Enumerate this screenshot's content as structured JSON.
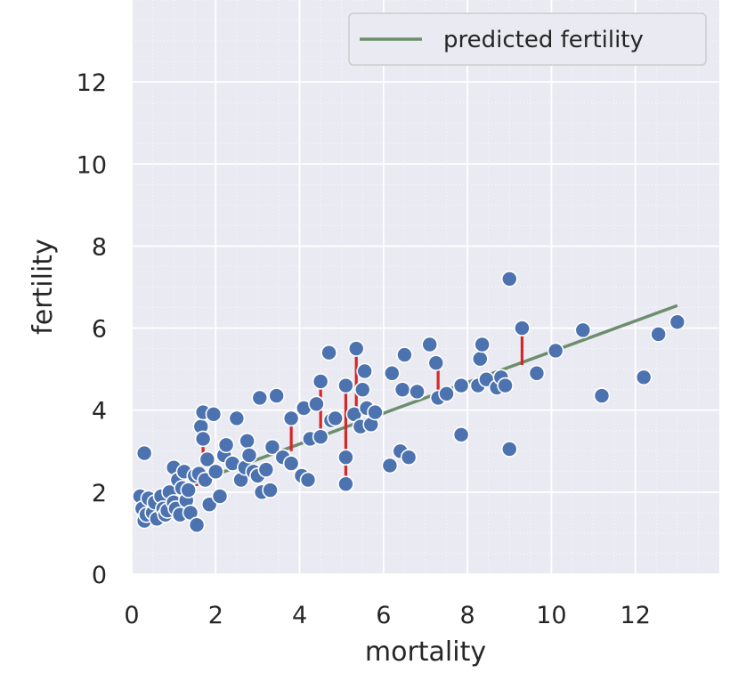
{
  "chart_data": {
    "type": "scatter",
    "title": "",
    "xlabel": "mortality",
    "ylabel": "fertility",
    "xlim": [
      0,
      14
    ],
    "ylim": [
      0,
      14
    ],
    "xticks": [
      0,
      2,
      4,
      6,
      8,
      10,
      12
    ],
    "yticks": [
      0,
      2,
      4,
      6,
      8,
      10,
      12
    ],
    "grid": true,
    "legend_placement": "top-right",
    "colors": {
      "background": "#eaeaf2",
      "grid": "#ffffff",
      "points": "#4c72b0",
      "point_edge": "#ffffff",
      "line": "#6d8e6d",
      "residuals": "#d62728"
    },
    "regression_line": {
      "name": "predicted fertility",
      "x": [
        0.2,
        13.0
      ],
      "y": [
        1.75,
        6.55
      ]
    },
    "residuals": [
      {
        "x": 0.3,
        "y_from": 1.78,
        "y_to": 1.45
      },
      {
        "x": 0.4,
        "y_from": 1.8,
        "y_to": 1.35
      },
      {
        "x": 0.9,
        "y_from": 1.95,
        "y_to": 1.55
      },
      {
        "x": 1.55,
        "y_from": 2.15,
        "y_to": 2.45
      },
      {
        "x": 1.7,
        "y_from": 2.25,
        "y_to": 3.95
      },
      {
        "x": 3.8,
        "y_from": 3.0,
        "y_to": 3.8
      },
      {
        "x": 4.5,
        "y_from": 3.3,
        "y_to": 4.7
      },
      {
        "x": 5.1,
        "y_from": 3.5,
        "y_to": 2.2
      },
      {
        "x": 5.1,
        "y_from": 3.5,
        "y_to": 4.6
      },
      {
        "x": 5.35,
        "y_from": 3.6,
        "y_to": 5.5
      },
      {
        "x": 7.3,
        "y_from": 4.4,
        "y_to": 5.15
      },
      {
        "x": 8.7,
        "y_from": 4.95,
        "y_to": 4.55
      },
      {
        "x": 9.3,
        "y_from": 5.1,
        "y_to": 6.0
      }
    ],
    "points": [
      {
        "x": 0.3,
        "y": 2.95
      },
      {
        "x": 0.2,
        "y": 1.9
      },
      {
        "x": 0.25,
        "y": 1.6
      },
      {
        "x": 0.3,
        "y": 1.3
      },
      {
        "x": 0.35,
        "y": 1.45
      },
      {
        "x": 0.4,
        "y": 1.85
      },
      {
        "x": 0.5,
        "y": 1.5
      },
      {
        "x": 0.55,
        "y": 1.75
      },
      {
        "x": 0.6,
        "y": 1.35
      },
      {
        "x": 0.7,
        "y": 1.9
      },
      {
        "x": 0.75,
        "y": 1.6
      },
      {
        "x": 0.8,
        "y": 1.45
      },
      {
        "x": 0.85,
        "y": 1.55
      },
      {
        "x": 0.9,
        "y": 2.0
      },
      {
        "x": 1.0,
        "y": 2.6
      },
      {
        "x": 1.0,
        "y": 1.75
      },
      {
        "x": 1.05,
        "y": 1.6
      },
      {
        "x": 1.1,
        "y": 2.3
      },
      {
        "x": 1.15,
        "y": 1.45
      },
      {
        "x": 1.2,
        "y": 2.1
      },
      {
        "x": 1.25,
        "y": 2.5
      },
      {
        "x": 1.3,
        "y": 1.8
      },
      {
        "x": 1.35,
        "y": 2.05
      },
      {
        "x": 1.4,
        "y": 1.5
      },
      {
        "x": 1.5,
        "y": 2.4
      },
      {
        "x": 1.55,
        "y": 1.2
      },
      {
        "x": 1.6,
        "y": 2.45
      },
      {
        "x": 1.65,
        "y": 3.6
      },
      {
        "x": 1.7,
        "y": 3.3
      },
      {
        "x": 1.7,
        "y": 3.95
      },
      {
        "x": 1.75,
        "y": 2.3
      },
      {
        "x": 1.8,
        "y": 2.8
      },
      {
        "x": 1.85,
        "y": 1.7
      },
      {
        "x": 1.95,
        "y": 3.9
      },
      {
        "x": 2.0,
        "y": 2.5
      },
      {
        "x": 2.1,
        "y": 1.9
      },
      {
        "x": 2.2,
        "y": 2.9
      },
      {
        "x": 2.25,
        "y": 3.15
      },
      {
        "x": 2.4,
        "y": 2.7
      },
      {
        "x": 2.5,
        "y": 3.8
      },
      {
        "x": 2.6,
        "y": 2.3
      },
      {
        "x": 2.7,
        "y": 2.6
      },
      {
        "x": 2.75,
        "y": 3.25
      },
      {
        "x": 2.8,
        "y": 2.9
      },
      {
        "x": 2.9,
        "y": 2.5
      },
      {
        "x": 3.0,
        "y": 2.4
      },
      {
        "x": 3.05,
        "y": 4.3
      },
      {
        "x": 3.1,
        "y": 2.0
      },
      {
        "x": 3.2,
        "y": 2.55
      },
      {
        "x": 3.3,
        "y": 2.05
      },
      {
        "x": 3.35,
        "y": 3.1
      },
      {
        "x": 3.45,
        "y": 4.35
      },
      {
        "x": 3.6,
        "y": 2.85
      },
      {
        "x": 3.8,
        "y": 3.8
      },
      {
        "x": 3.8,
        "y": 2.7
      },
      {
        "x": 4.05,
        "y": 2.4
      },
      {
        "x": 4.1,
        "y": 4.05
      },
      {
        "x": 4.2,
        "y": 2.3
      },
      {
        "x": 4.25,
        "y": 3.3
      },
      {
        "x": 4.4,
        "y": 4.15
      },
      {
        "x": 4.5,
        "y": 4.7
      },
      {
        "x": 4.5,
        "y": 3.35
      },
      {
        "x": 4.7,
        "y": 5.4
      },
      {
        "x": 4.75,
        "y": 3.75
      },
      {
        "x": 4.85,
        "y": 3.8
      },
      {
        "x": 5.1,
        "y": 2.2
      },
      {
        "x": 5.1,
        "y": 2.85
      },
      {
        "x": 5.1,
        "y": 4.6
      },
      {
        "x": 5.3,
        "y": 3.9
      },
      {
        "x": 5.35,
        "y": 5.5
      },
      {
        "x": 5.45,
        "y": 3.6
      },
      {
        "x": 5.5,
        "y": 4.5
      },
      {
        "x": 5.55,
        "y": 4.95
      },
      {
        "x": 5.6,
        "y": 4.05
      },
      {
        "x": 5.7,
        "y": 3.65
      },
      {
        "x": 5.8,
        "y": 3.95
      },
      {
        "x": 6.15,
        "y": 2.65
      },
      {
        "x": 6.2,
        "y": 4.9
      },
      {
        "x": 6.4,
        "y": 3.0
      },
      {
        "x": 6.45,
        "y": 4.5
      },
      {
        "x": 6.5,
        "y": 5.35
      },
      {
        "x": 6.6,
        "y": 2.85
      },
      {
        "x": 6.8,
        "y": 4.45
      },
      {
        "x": 7.1,
        "y": 5.6
      },
      {
        "x": 7.25,
        "y": 5.15
      },
      {
        "x": 7.3,
        "y": 4.3
      },
      {
        "x": 7.5,
        "y": 4.4
      },
      {
        "x": 7.85,
        "y": 3.4
      },
      {
        "x": 7.85,
        "y": 4.6
      },
      {
        "x": 8.25,
        "y": 4.6
      },
      {
        "x": 8.3,
        "y": 5.25
      },
      {
        "x": 8.35,
        "y": 5.6
      },
      {
        "x": 8.45,
        "y": 4.75
      },
      {
        "x": 8.7,
        "y": 4.55
      },
      {
        "x": 8.8,
        "y": 4.8
      },
      {
        "x": 8.9,
        "y": 4.6
      },
      {
        "x": 9.0,
        "y": 7.2
      },
      {
        "x": 9.0,
        "y": 3.05
      },
      {
        "x": 9.3,
        "y": 6.0
      },
      {
        "x": 9.65,
        "y": 4.9
      },
      {
        "x": 10.1,
        "y": 5.45
      },
      {
        "x": 10.75,
        "y": 5.95
      },
      {
        "x": 11.2,
        "y": 4.35
      },
      {
        "x": 12.2,
        "y": 4.8
      },
      {
        "x": 12.55,
        "y": 5.85
      },
      {
        "x": 13.0,
        "y": 6.15
      }
    ],
    "legend": [
      {
        "label": "predicted fertility",
        "kind": "line"
      }
    ]
  }
}
